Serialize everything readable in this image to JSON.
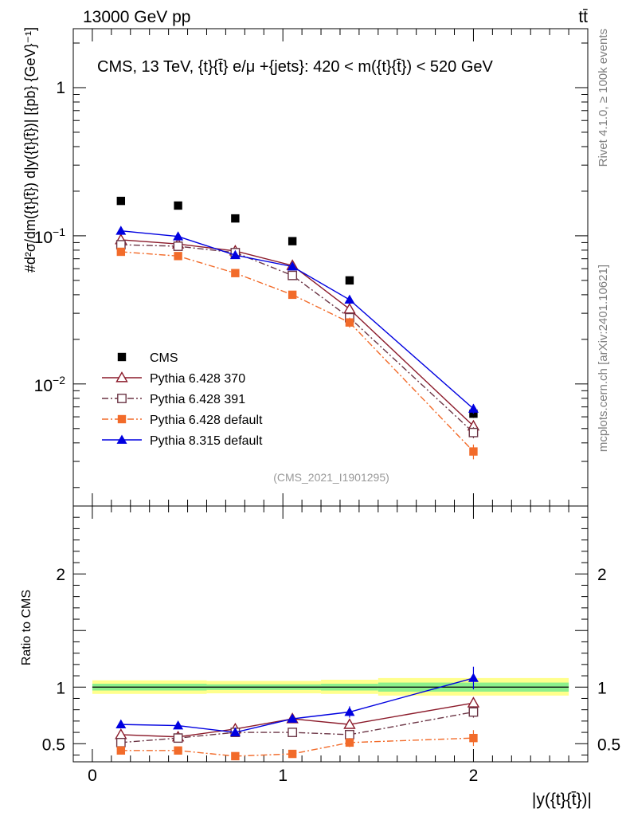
{
  "header": {
    "energy_label": "13000 GeV pp",
    "process_label": "tt̄"
  },
  "side_labels": {
    "rivet": "Rivet 4.1.0, ≥ 100k events",
    "mcplots": "mcplots.cern.ch [arXiv:2401.10621]"
  },
  "chart_data": [
    {
      "type": "line",
      "panel": "main",
      "title": "CMS, 13 TeV, {t}{t̄} e/μ +{jets}: 420 < m({t}{t̄}) < 520 GeV",
      "ylabel": "#d²σ/dm({t}{t̄}) d|y({t}{t̄})| [{pb} {GeV}⁻¹]",
      "yscale": "log",
      "ylim": [
        0.0015,
        2.5
      ],
      "xlim": [
        -0.1,
        2.6
      ],
      "grid": false,
      "ytick_labels": [
        {
          "value": 1,
          "label": "1"
        },
        {
          "value": 0.1,
          "base": "10",
          "exp": "−1"
        },
        {
          "value": 0.01,
          "base": "10",
          "exp": "−2"
        }
      ],
      "watermark": "(CMS_2021_I1901295)",
      "legend": [
        "CMS",
        "Pythia 6.428 370",
        "Pythia 6.428 391",
        "Pythia 6.428 default",
        "Pythia 8.315 default"
      ],
      "legend_position": "bottom-left",
      "x": [
        0.15,
        0.45,
        0.75,
        1.05,
        1.35,
        2.0
      ],
      "series": [
        {
          "name": "CMS",
          "color": "#000000",
          "marker": "square-filled",
          "line": "none",
          "values": [
            0.172,
            0.16,
            0.131,
            0.092,
            0.05,
            0.0063
          ],
          "errors": [
            0,
            0,
            0,
            0,
            0,
            0.0004
          ]
        },
        {
          "name": "Pythia 6.428 370",
          "color": "#8b1a2a",
          "marker": "triangle-open",
          "line": "solid",
          "values": [
            0.094,
            0.088,
            0.079,
            0.063,
            0.032,
            0.0052
          ],
          "errors": [
            0.003,
            0.003,
            0.003,
            0.003,
            0.002,
            0.0004
          ]
        },
        {
          "name": "Pythia 6.428 391",
          "color": "#6b3545",
          "marker": "square-open",
          "line": "dashdot",
          "values": [
            0.087,
            0.085,
            0.077,
            0.054,
            0.028,
            0.0047
          ],
          "errors": [
            0.003,
            0.003,
            0.003,
            0.003,
            0.002,
            0.0004
          ]
        },
        {
          "name": "Pythia 6.428 default",
          "color": "#f26b2a",
          "marker": "square-filled",
          "line": "dashdot",
          "values": [
            0.078,
            0.073,
            0.056,
            0.04,
            0.026,
            0.0035
          ],
          "errors": [
            0.002,
            0.002,
            0.002,
            0.002,
            0.002,
            0.0004
          ]
        },
        {
          "name": "Pythia 8.315 default",
          "color": "#0000e0",
          "marker": "triangle-filled",
          "line": "solid",
          "values": [
            0.108,
            0.099,
            0.074,
            0.062,
            0.037,
            0.0068
          ],
          "errors": [
            0.003,
            0.003,
            0.003,
            0.003,
            0.002,
            0.0005
          ]
        }
      ]
    },
    {
      "type": "line",
      "panel": "ratio",
      "ylabel": "Ratio to CMS",
      "xlabel": "|y({t}{t̄})|",
      "ylim": [
        0.34,
        2.6
      ],
      "xlim": [
        -0.1,
        2.6
      ],
      "ytick_labels": [
        "0.5",
        "1",
        "2"
      ],
      "xtick_labels": [
        "0",
        "1",
        "2"
      ],
      "x": [
        0.15,
        0.45,
        0.75,
        1.05,
        1.35,
        2.0
      ],
      "bands": [
        {
          "name": "total",
          "color": "#ffff8c",
          "segments": [
            [
              0,
              0.6,
              0.94,
              1.06
            ],
            [
              0.6,
              1.2,
              0.945,
              1.055
            ],
            [
              1.2,
              1.5,
              0.94,
              1.065
            ],
            [
              1.5,
              2.5,
              0.925,
              1.08
            ]
          ]
        },
        {
          "name": "stat",
          "color": "#8cf08c",
          "segments": [
            [
              0,
              0.6,
              0.97,
              1.03
            ],
            [
              0.6,
              1.2,
              0.975,
              1.025
            ],
            [
              1.2,
              1.5,
              0.97,
              1.03
            ],
            [
              1.5,
              2.5,
              0.96,
              1.04
            ]
          ]
        }
      ],
      "series": [
        {
          "name": "Pythia 6.428 370",
          "values": [
            0.58,
            0.56,
            0.63,
            0.72,
            0.67,
            0.86
          ],
          "errors": [
            0.025,
            0.025,
            0.025,
            0.025,
            0.03,
            0.05
          ]
        },
        {
          "name": "Pythia 6.428 391",
          "values": [
            0.51,
            0.55,
            0.6,
            0.6,
            0.58,
            0.78
          ],
          "errors": [
            0.02,
            0.02,
            0.025,
            0.025,
            0.025,
            0.05
          ]
        },
        {
          "name": "Pythia 6.428 default",
          "values": [
            0.44,
            0.44,
            0.39,
            0.41,
            0.51,
            0.55
          ],
          "errors": [
            0.025,
            0.025,
            0.025,
            0.03,
            0.04,
            0.07
          ]
        },
        {
          "name": "Pythia 8.315 default",
          "values": [
            0.67,
            0.66,
            0.6,
            0.72,
            0.78,
            1.08
          ],
          "errors": [
            0.025,
            0.025,
            0.025,
            0.025,
            0.05,
            0.1
          ]
        }
      ]
    }
  ]
}
